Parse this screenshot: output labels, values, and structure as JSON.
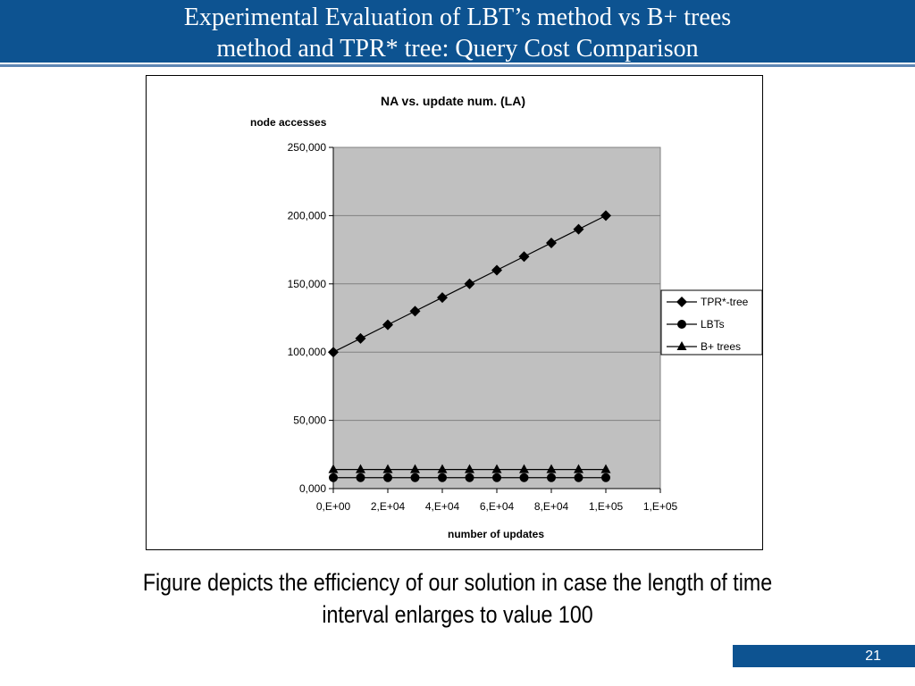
{
  "slide": {
    "title_lines": [
      "Experimental Evaluation of LBT’s method vs B+ trees",
      "method and TPR* tree: Query Cost Comparison"
    ],
    "caption_lines": [
      "Figure depicts the efficiency of our solution in case the length of time",
      "interval enlarges to value 100"
    ],
    "page_number": "21",
    "colors": {
      "accent": "#0d5391",
      "plot_background": "#c0c0c0"
    }
  },
  "chart_data": {
    "type": "line",
    "title": "NA vs. update num. (LA)",
    "ylabel": "node accesses",
    "xlabel": "number of updates",
    "x_tick_labels": [
      "0,E+00",
      "2,E+04",
      "4,E+04",
      "6,E+04",
      "8,E+04",
      "1,E+05",
      "1,E+05"
    ],
    "y_tick_labels": [
      "0,000",
      "50,000",
      "100,000",
      "150,000",
      "200,000",
      "250,000"
    ],
    "xlim": [
      0,
      120000
    ],
    "ylim": [
      0,
      250000
    ],
    "x": [
      0,
      10000,
      20000,
      30000,
      40000,
      50000,
      60000,
      70000,
      80000,
      90000,
      100000
    ],
    "series": [
      {
        "name": "TPR*-tree",
        "marker": "diamond",
        "values": [
          100000,
          110000,
          120000,
          130000,
          140000,
          150000,
          160000,
          170000,
          180000,
          190000,
          200000
        ]
      },
      {
        "name": "LBTs",
        "marker": "circle",
        "values": [
          8000,
          8000,
          8000,
          8000,
          8000,
          8000,
          8000,
          8000,
          8000,
          8000,
          8000
        ]
      },
      {
        "name": "B+ trees",
        "marker": "triangle",
        "values": [
          14000,
          14000,
          14000,
          14000,
          14000,
          14000,
          14000,
          14000,
          14000,
          14000,
          14000
        ]
      }
    ],
    "grid": "horizontal",
    "legend": "right"
  }
}
